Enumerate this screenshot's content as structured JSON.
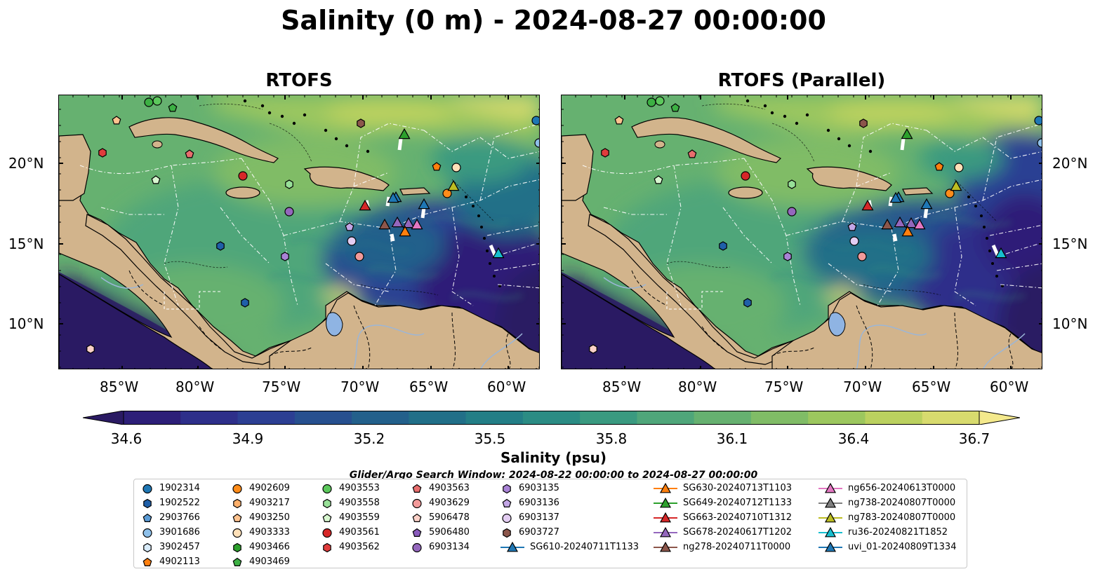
{
  "title": "Salinity (0 m) - 2024-08-27 00:00:00",
  "panels": [
    {
      "title": "RTOFS"
    },
    {
      "title": "RTOFS (Parallel)"
    }
  ],
  "axes": {
    "x_ticks": [
      "85°W",
      "80°W",
      "75°W",
      "70°W",
      "65°W",
      "60°W"
    ],
    "y_ticks": [
      "20°N",
      "15°N",
      "10°N"
    ]
  },
  "colorbar": {
    "label": "Salinity (psu)",
    "ticks": [
      "34.6",
      "34.9",
      "35.2",
      "35.5",
      "35.8",
      "36.1",
      "36.4",
      "36.7"
    ],
    "min": 34.6,
    "max": 36.7,
    "colors": [
      "#2a1a63",
      "#2d1f78",
      "#2e2f8a",
      "#2c3f93",
      "#27508f",
      "#23608b",
      "#216f88",
      "#237e86",
      "#2b8c84",
      "#3a9a80",
      "#4fa67a",
      "#66b170",
      "#80bc66",
      "#9cc75e",
      "#bbd15f",
      "#d8db6e",
      "#f4e98c"
    ]
  },
  "search_window": "Glider/Argo Search Window: 2024-08-22 00:00:00 to 2024-08-27 00:00:00",
  "colors": {
    "land": "#d2b48c",
    "lake": "#8fb4e3",
    "river": "#9bb6d8",
    "eez": "#ffffff"
  },
  "legend": {
    "columns": [
      [
        {
          "label": "1902314",
          "marker": "circle",
          "color": "#1f77b4"
        },
        {
          "label": "1902522",
          "marker": "hexagon",
          "color": "#1f5fa8"
        },
        {
          "label": "2903766",
          "marker": "pentagon",
          "color": "#5b9bd5"
        },
        {
          "label": "3901686",
          "marker": "circle",
          "color": "#8ec0ea"
        },
        {
          "label": "3902457",
          "marker": "hexagon",
          "color": "#d9ecfb"
        },
        {
          "label": "4902113",
          "marker": "pentagon",
          "color": "#ff7f0e"
        }
      ],
      [
        {
          "label": "4902609",
          "marker": "circle",
          "color": "#ff8c1a"
        },
        {
          "label": "4903217",
          "marker": "hexagon",
          "color": "#ffb06b"
        },
        {
          "label": "4903250",
          "marker": "pentagon",
          "color": "#ffc38f"
        },
        {
          "label": "4903333",
          "marker": "circle",
          "color": "#ffe0b8"
        },
        {
          "label": "4903466",
          "marker": "hexagon",
          "color": "#2ca02c"
        },
        {
          "label": "4903469",
          "marker": "pentagon",
          "color": "#3cb043"
        }
      ],
      [
        {
          "label": "4903553",
          "marker": "circle",
          "color": "#5cc85c"
        },
        {
          "label": "4903558",
          "marker": "hexagon",
          "color": "#98e098"
        },
        {
          "label": "4903559",
          "marker": "pentagon",
          "color": "#d8f7d0"
        },
        {
          "label": "4903561",
          "marker": "circle",
          "color": "#d62728"
        },
        {
          "label": "4903562",
          "marker": "hexagon",
          "color": "#e03c3c"
        }
      ],
      [
        {
          "label": "4903563",
          "marker": "pentagon",
          "color": "#e86e6e"
        },
        {
          "label": "4903629",
          "marker": "circle",
          "color": "#f29a9a"
        },
        {
          "label": "5906478",
          "marker": "pentagon",
          "color": "#fbd1c8"
        },
        {
          "label": "5906480",
          "marker": "pentagon",
          "color": "#8a5bbd"
        },
        {
          "label": "6903134",
          "marker": "circle",
          "color": "#9467bd"
        }
      ],
      [
        {
          "label": "6903135",
          "marker": "hexagon",
          "color": "#a983d6"
        },
        {
          "label": "6903136",
          "marker": "pentagon",
          "color": "#c3a6e6"
        },
        {
          "label": "6903137",
          "marker": "circle",
          "color": "#e3cdf2"
        },
        {
          "label": "6903727",
          "marker": "hexagon",
          "color": "#8c564b"
        },
        {
          "label": "SG610-20240711T1133",
          "marker": "triangle-line",
          "color": "#1f77b4"
        }
      ],
      [
        {
          "label": "SG630-20240713T1103",
          "marker": "triangle-line",
          "color": "#ff7f0e"
        },
        {
          "label": "SG649-20240712T1133",
          "marker": "triangle-line",
          "color": "#2ca02c"
        },
        {
          "label": "SG663-20240710T1312",
          "marker": "triangle-line",
          "color": "#d62728"
        },
        {
          "label": "SG678-20240617T1202",
          "marker": "triangle-line",
          "color": "#9467bd"
        },
        {
          "label": "ng278-20240711T0000",
          "marker": "triangle-line",
          "color": "#8c564b"
        }
      ],
      [
        {
          "label": "ng656-20240613T0000",
          "marker": "triangle-line",
          "color": "#e377c2"
        },
        {
          "label": "ng738-20240807T0000",
          "marker": "triangle-line",
          "color": "#7f7f7f"
        },
        {
          "label": "ng783-20240807T0000",
          "marker": "triangle-line",
          "color": "#bcbd22"
        },
        {
          "label": "ru36-20240821T1852",
          "marker": "triangle-line",
          "color": "#17becf"
        },
        {
          "label": "uvi_01-20240809T1334",
          "marker": "triangle-line",
          "color": "#1f77b4"
        }
      ]
    ]
  }
}
